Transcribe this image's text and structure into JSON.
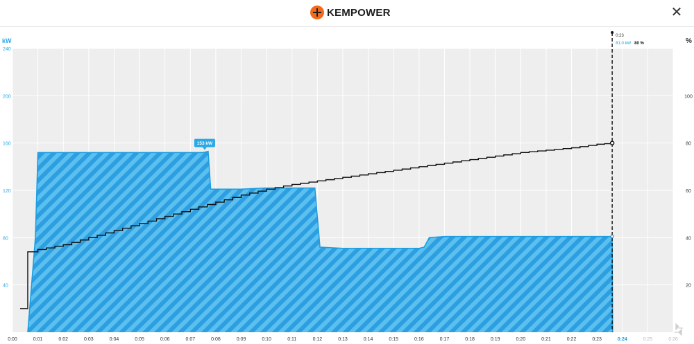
{
  "header": {
    "logo_text": "KEMPOWER",
    "close_label": "✕"
  },
  "chart_data": {
    "type": "area",
    "ylabel_left": "kW",
    "ylabel_right": "%",
    "y_left_ticks": [
      40,
      80,
      120,
      160,
      200,
      240
    ],
    "y_right_ticks": [
      20,
      40,
      60,
      80,
      100
    ],
    "ylim_left": [
      0,
      240
    ],
    "ylim_right": [
      0,
      120
    ],
    "x_ticks": [
      "0:00",
      "0:01",
      "0:02",
      "0:03",
      "0:04",
      "0:05",
      "0:06",
      "0:07",
      "0:08",
      "0:09",
      "0:10",
      "0:11",
      "0:12",
      "0:13",
      "0:14",
      "0:15",
      "0:16",
      "0:17",
      "0:18",
      "0:19",
      "0:20",
      "0:21",
      "0:22",
      "0:23",
      "0:24",
      "0:25",
      "0:26"
    ],
    "xlim": [
      0,
      26
    ],
    "grid": true,
    "colors": {
      "power_fill": "#5bc0f0",
      "power_stripe": "#2d9fe0",
      "power_line": "#1a9de0",
      "soc_line": "#111111",
      "plot_bg": "#eeeeee",
      "label_bg": "#29a9e6"
    },
    "series": [
      {
        "name": "kW",
        "axis": "left",
        "points": [
          [
            0.6,
            0
          ],
          [
            0.9,
            80
          ],
          [
            1.0,
            152
          ],
          [
            2.0,
            152
          ],
          [
            3.0,
            152
          ],
          [
            4.0,
            152
          ],
          [
            5.0,
            152
          ],
          [
            6.0,
            152
          ],
          [
            7.0,
            152
          ],
          [
            7.5,
            152
          ],
          [
            7.7,
            153
          ],
          [
            7.8,
            121
          ],
          [
            9.0,
            121
          ],
          [
            10.0,
            122
          ],
          [
            11.0,
            122
          ],
          [
            11.9,
            122
          ],
          [
            12.1,
            72
          ],
          [
            13.0,
            71
          ],
          [
            14.0,
            71
          ],
          [
            15.0,
            71
          ],
          [
            16.0,
            71
          ],
          [
            16.2,
            72
          ],
          [
            16.4,
            80
          ],
          [
            17.0,
            81
          ],
          [
            18.0,
            81
          ],
          [
            19.0,
            81
          ],
          [
            20.0,
            81
          ],
          [
            21.0,
            81
          ],
          [
            22.0,
            81
          ],
          [
            23.0,
            81
          ],
          [
            23.6,
            81
          ],
          [
            23.62,
            0
          ]
        ]
      },
      {
        "name": "%",
        "axis": "right",
        "points": [
          [
            0.3,
            10
          ],
          [
            0.55,
            10
          ],
          [
            0.6,
            34
          ],
          [
            0.8,
            34
          ],
          [
            1.0,
            35
          ],
          [
            2.0,
            37
          ],
          [
            3.0,
            40
          ],
          [
            4.0,
            43
          ],
          [
            5.0,
            46
          ],
          [
            6.0,
            49
          ],
          [
            7.0,
            52
          ],
          [
            8.0,
            55
          ],
          [
            9.0,
            58
          ],
          [
            10.0,
            60.5
          ],
          [
            11.0,
            62.5
          ],
          [
            12.0,
            64
          ],
          [
            13.0,
            65.5
          ],
          [
            14.0,
            67
          ],
          [
            15.0,
            68.5
          ],
          [
            16.0,
            70
          ],
          [
            17.0,
            71.5
          ],
          [
            18.0,
            73
          ],
          [
            19.0,
            74.5
          ],
          [
            20.0,
            76
          ],
          [
            21.0,
            77
          ],
          [
            22.0,
            78
          ],
          [
            23.0,
            79.5
          ],
          [
            23.6,
            80
          ]
        ]
      }
    ],
    "annotations": {
      "peak_label": "153 kW",
      "peak_x": 7.7,
      "peak_value": 153,
      "cursor_time": "0:23",
      "cursor_power": "81.0 kW",
      "cursor_soc": "80 %",
      "cursor_x": 23.6,
      "current_x_label": "0:24"
    }
  }
}
